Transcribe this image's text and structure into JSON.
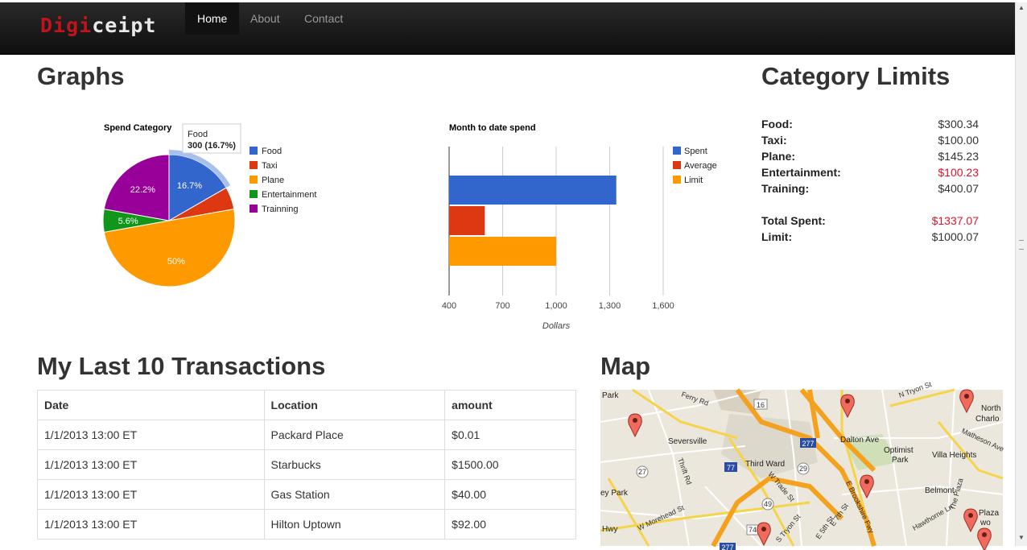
{
  "nav": {
    "brand_a": "Digi",
    "brand_b": "ceipt",
    "items": [
      {
        "label": "Home",
        "active": true
      },
      {
        "label": "About",
        "active": false
      },
      {
        "label": "Contact",
        "active": false
      }
    ]
  },
  "graphs": {
    "heading": "Graphs",
    "tooltip": {
      "line1": "Food",
      "line2": "300 (16.7%)"
    }
  },
  "chart_data": [
    {
      "type": "pie",
      "title": "Spend Category",
      "categories": [
        "Food",
        "Taxi",
        "Plane",
        "Entertainment",
        "Trainning"
      ],
      "values": [
        16.7,
        5.5,
        50,
        5.6,
        22.2
      ],
      "slice_labels": [
        "16.7%",
        "",
        "50%",
        "5.6%",
        "22.2%"
      ],
      "colors": [
        "#3366cc",
        "#dc3912",
        "#ff9900",
        "#109618",
        "#990099"
      ],
      "legend_position": "right"
    },
    {
      "type": "bar",
      "orientation": "horizontal",
      "title": "Month to date spend",
      "series": [
        {
          "name": "Spent",
          "value": 1337.07,
          "color": "#3366cc"
        },
        {
          "name": "Average",
          "value": 600,
          "color": "#dc3912"
        },
        {
          "name": "Limit",
          "value": 1000.07,
          "color": "#ff9900"
        }
      ],
      "xlabel": "Dollars",
      "xlim": [
        400,
        1600
      ],
      "xticks": [
        "400",
        "700",
        "1,000",
        "1,300",
        "1,600"
      ],
      "grid": true,
      "legend_position": "right"
    }
  ],
  "limits": {
    "heading": "Category Limits",
    "rows": [
      {
        "label": "Food:",
        "value": "$300.34",
        "red": false
      },
      {
        "label": "Taxi:",
        "value": "$100.00",
        "red": false
      },
      {
        "label": "Plane:",
        "value": "$145.23",
        "red": false
      },
      {
        "label": "Entertainment:",
        "value": "$100.23",
        "red": true
      },
      {
        "label": "Training:",
        "value": "$400.07",
        "red": false
      }
    ],
    "total": {
      "label": "Total Spent:",
      "value": "$1337.07"
    },
    "limit": {
      "label": "Limit:",
      "value": "$1000.07"
    }
  },
  "transactions": {
    "heading": "My Last 10 Transactions",
    "columns": [
      "Date",
      "Location",
      "amount"
    ],
    "rows": [
      [
        "1/1/2013 13:00 ET",
        "Packard Place",
        "$0.01"
      ],
      [
        "1/1/2013 13:00 ET",
        "Starbucks",
        "$1500.00"
      ],
      [
        "1/1/2013 13:00 ET",
        "Gas Station",
        "$40.00"
      ],
      [
        "1/1/2013 13:00 ET",
        "Hilton Uptown",
        "$92.00"
      ]
    ]
  },
  "map": {
    "heading": "Map",
    "labels": [
      "Seversville",
      "Third Ward",
      "Dalton Ave",
      "Optimist",
      "Park",
      "Villa Heights",
      "Belmont",
      "North",
      "Charlo",
      "Matheson Ave",
      "Park",
      "ey Park",
      "W Morehead St",
      "W Trade St",
      "S Tryon St",
      "E Brookshire Fwy",
      "Ferry Rd",
      "Thrift Rd",
      "N Tryon St",
      "The Plaza",
      "Hawthorne Ln",
      "E 7th St",
      "E 5th St",
      "Hwy",
      "Plaza",
      "wo"
    ],
    "routes": [
      "16",
      "277",
      "27",
      "77",
      "29",
      "49",
      "277",
      "74"
    ]
  }
}
